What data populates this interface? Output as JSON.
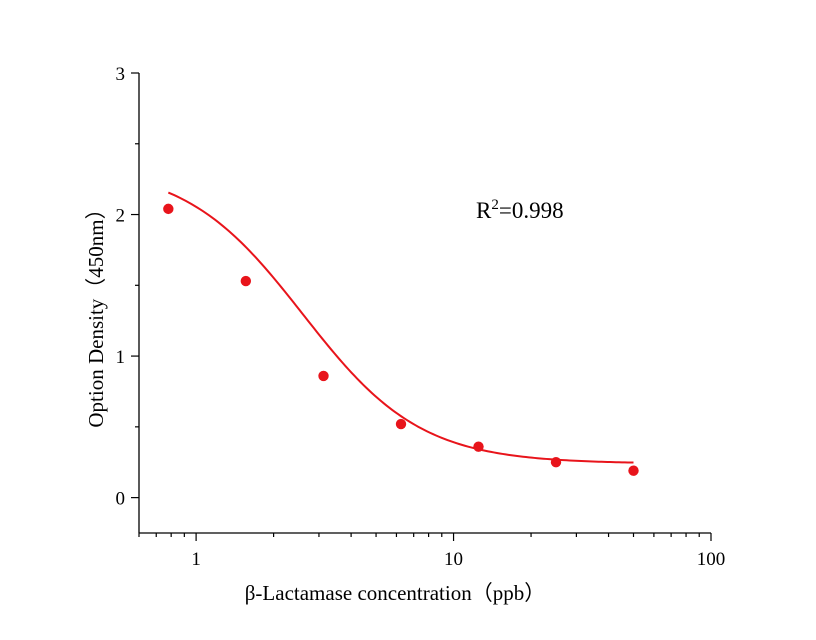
{
  "chart_data": {
    "type": "scatter",
    "title": "",
    "xlabel": "β-Lactamase concentration（ppb）",
    "ylabel": "Option Density（450nm）",
    "x_scale": "log",
    "xlim": [
      0.6,
      100
    ],
    "ylim": [
      -0.25,
      3
    ],
    "x_ticks": [
      1,
      10,
      100
    ],
    "x_tick_labels": [
      "1",
      "10",
      "100"
    ],
    "y_ticks": [
      0,
      1,
      2,
      3
    ],
    "y_tick_labels": [
      "0",
      "1",
      "2",
      "3"
    ],
    "grid": false,
    "legend": "none",
    "annotation": {
      "base": "R",
      "sup": "2",
      "rest": "=0.998"
    },
    "series": [
      {
        "type": "scatter",
        "color": "#e8141b",
        "x": [
          0.78,
          1.56,
          3.125,
          6.25,
          12.5,
          25,
          50
        ],
        "y": [
          2.04,
          1.53,
          0.86,
          0.52,
          0.36,
          0.25,
          0.19
        ]
      }
    ],
    "fit_curve": {
      "type": "4PL",
      "color": "#e8141b",
      "x_range": [
        0.78,
        50
      ],
      "a_top": 2.35,
      "d_bottom": 0.24,
      "c_ec50": 2.6,
      "b_slope": 1.9
    }
  }
}
